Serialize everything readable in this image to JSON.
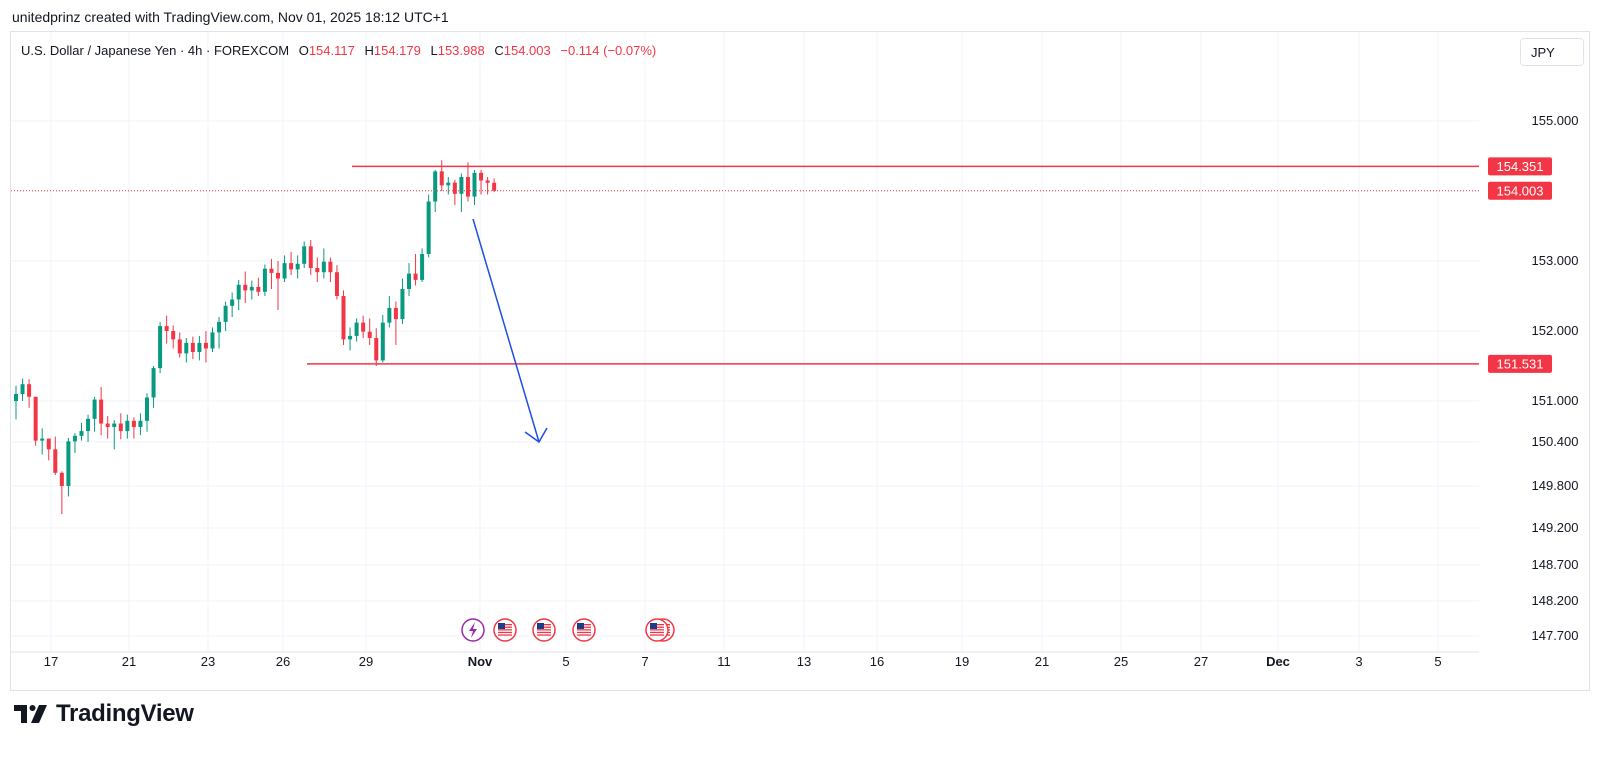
{
  "header": {
    "attribution": "unitedprinz created with TradingView.com, Nov 01, 2025 18:12 UTC+1"
  },
  "legend": {
    "symbol": "U.S. Dollar / Japanese Yen · 4h · FOREXCOM",
    "open_label": "O",
    "open": "154.117",
    "high_label": "H",
    "high": "154.179",
    "low_label": "L",
    "low": "153.988",
    "close_label": "C",
    "close": "154.003",
    "change": "−0.114 (−0.07%)"
  },
  "currency_button": {
    "label": "JPY"
  },
  "footer": {
    "logo_text": "TradingView"
  },
  "colors": {
    "up": "#089981",
    "down": "#f23645",
    "line": "#f23645",
    "arrow": "#1f4fe0",
    "grid": "#f0f3fa"
  },
  "chart_data": {
    "type": "candlestick",
    "yticks": [
      155.0,
      153.0,
      152.0,
      151.0,
      150.4,
      149.8,
      149.2,
      148.7,
      148.2,
      147.7
    ],
    "ytick_labels": [
      "155.000",
      "153.000",
      "152.000",
      "151.000",
      "150.400",
      "149.800",
      "149.200",
      "148.700",
      "148.200",
      "147.700"
    ],
    "xtick_labels": [
      "17",
      "21",
      "23",
      "26",
      "29",
      "Nov",
      "5",
      "7",
      "11",
      "13",
      "16",
      "19",
      "21",
      "25",
      "27",
      "Dec",
      "3",
      "5"
    ],
    "xtick_bold": [
      "Nov",
      "Dec"
    ],
    "horizontal_levels": [
      {
        "value": 154.351,
        "label": "154.351"
      },
      {
        "value": 151.531,
        "label": "151.531"
      }
    ],
    "last_price": {
      "value": 154.003,
      "label": "154.003"
    },
    "projection_arrow": {
      "from": 153.6,
      "to": 150.4
    },
    "candles": [
      [
        151.0,
        151.22,
        150.73,
        151.1
      ],
      [
        151.1,
        151.32,
        151.0,
        151.24
      ],
      [
        151.24,
        151.31,
        150.9,
        151.06
      ],
      [
        151.06,
        151.06,
        150.35,
        150.42
      ],
      [
        150.42,
        150.6,
        150.23,
        150.45
      ],
      [
        150.45,
        150.45,
        150.15,
        150.3
      ],
      [
        150.3,
        150.48,
        149.95,
        149.98
      ],
      [
        149.98,
        150.0,
        149.4,
        149.8
      ],
      [
        149.8,
        150.46,
        149.65,
        150.41
      ],
      [
        150.41,
        150.53,
        150.25,
        150.49
      ],
      [
        150.49,
        150.68,
        150.42,
        150.56
      ],
      [
        150.56,
        150.8,
        150.4,
        150.74
      ],
      [
        150.74,
        151.06,
        150.55,
        151.02
      ],
      [
        151.02,
        151.2,
        150.5,
        150.67
      ],
      [
        150.67,
        150.78,
        150.45,
        150.62
      ],
      [
        150.62,
        150.72,
        150.3,
        150.67
      ],
      [
        150.67,
        150.82,
        150.44,
        150.56
      ],
      [
        150.56,
        150.8,
        150.45,
        150.71
      ],
      [
        150.71,
        150.76,
        150.45,
        150.62
      ],
      [
        150.62,
        150.82,
        150.5,
        150.71
      ],
      [
        150.71,
        151.11,
        150.55,
        151.05
      ],
      [
        151.05,
        151.5,
        150.9,
        151.47
      ],
      [
        151.47,
        152.13,
        151.4,
        152.07
      ],
      [
        152.07,
        152.22,
        151.82,
        152.0
      ],
      [
        152.0,
        152.08,
        151.75,
        151.88
      ],
      [
        151.88,
        151.98,
        151.62,
        151.68
      ],
      [
        151.68,
        151.9,
        151.55,
        151.83
      ],
      [
        151.83,
        151.92,
        151.6,
        151.7
      ],
      [
        151.7,
        151.93,
        151.58,
        151.83
      ],
      [
        151.83,
        152.0,
        151.55,
        151.75
      ],
      [
        151.75,
        152.05,
        151.7,
        151.98
      ],
      [
        151.98,
        152.2,
        151.75,
        152.13
      ],
      [
        152.13,
        152.42,
        152.0,
        152.36
      ],
      [
        152.36,
        152.55,
        152.2,
        152.45
      ],
      [
        152.45,
        152.73,
        152.3,
        152.66
      ],
      [
        152.66,
        152.85,
        152.4,
        152.58
      ],
      [
        152.58,
        152.72,
        152.45,
        152.63
      ],
      [
        152.63,
        152.76,
        152.5,
        152.56
      ],
      [
        152.56,
        152.95,
        152.5,
        152.89
      ],
      [
        152.89,
        153.03,
        152.6,
        152.83
      ],
      [
        152.83,
        153.0,
        152.3,
        152.75
      ],
      [
        152.75,
        153.08,
        152.7,
        152.97
      ],
      [
        152.97,
        153.13,
        152.8,
        152.88
      ],
      [
        152.88,
        153.08,
        152.75,
        152.96
      ],
      [
        152.96,
        153.28,
        152.9,
        153.21
      ],
      [
        153.21,
        153.3,
        152.8,
        152.9
      ],
      [
        152.9,
        153.05,
        152.7,
        152.84
      ],
      [
        152.84,
        153.18,
        152.75,
        152.99
      ],
      [
        152.99,
        153.05,
        152.7,
        152.84
      ],
      [
        152.84,
        152.94,
        152.45,
        152.5
      ],
      [
        152.5,
        152.58,
        151.8,
        151.88
      ],
      [
        151.88,
        152.05,
        151.72,
        151.93
      ],
      [
        151.93,
        152.18,
        151.85,
        152.12
      ],
      [
        152.12,
        152.22,
        151.9,
        151.99
      ],
      [
        151.99,
        152.18,
        151.8,
        151.9
      ],
      [
        151.9,
        152.04,
        151.5,
        151.58
      ],
      [
        151.58,
        152.23,
        151.55,
        152.12
      ],
      [
        152.12,
        152.5,
        152.05,
        152.33
      ],
      [
        152.33,
        152.42,
        151.8,
        152.17
      ],
      [
        152.17,
        152.75,
        152.1,
        152.6
      ],
      [
        152.6,
        152.97,
        152.5,
        152.82
      ],
      [
        152.82,
        153.1,
        152.65,
        152.73
      ],
      [
        152.73,
        153.18,
        152.7,
        153.1
      ],
      [
        153.1,
        153.95,
        153.05,
        153.85
      ],
      [
        153.85,
        154.3,
        153.7,
        154.28
      ],
      [
        154.28,
        154.44,
        154.0,
        154.08
      ],
      [
        154.08,
        154.2,
        153.95,
        154.12
      ],
      [
        154.12,
        154.16,
        153.8,
        153.96
      ],
      [
        153.96,
        154.25,
        153.7,
        154.2
      ],
      [
        154.2,
        154.41,
        153.85,
        153.92
      ],
      [
        153.92,
        154.3,
        153.8,
        154.26
      ],
      [
        154.26,
        154.3,
        153.95,
        154.15
      ],
      [
        154.15,
        154.2,
        153.95,
        154.117
      ],
      [
        154.117,
        154.179,
        153.988,
        154.003
      ]
    ]
  }
}
